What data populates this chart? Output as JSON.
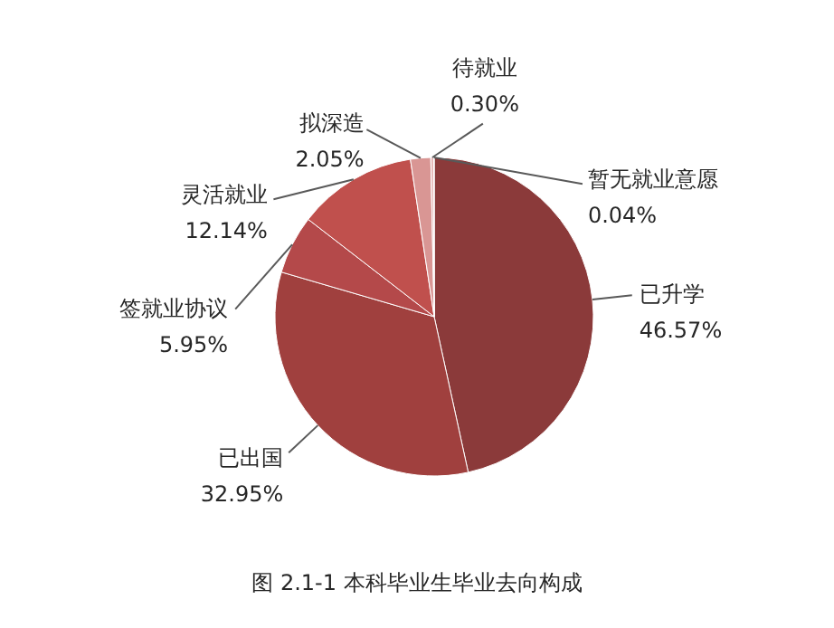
{
  "chart_data": {
    "type": "pie",
    "title": "图 2.1-1  本科毕业生毕业去向构成",
    "categories": [
      "已升学",
      "已出国",
      "签就业协议",
      "灵活就业",
      "拟深造",
      "待就业",
      "暂无就业意愿"
    ],
    "values": [
      46.57,
      32.95,
      5.95,
      12.14,
      2.05,
      0.3,
      0.04
    ],
    "value_labels": [
      "46.57%",
      "32.95%",
      "5.95%",
      "12.14%",
      "2.05%",
      "0.30%",
      "0.04%"
    ],
    "colors": [
      "#8b3a3a",
      "#a0403e",
      "#b4494a",
      "#c0504d",
      "#d99694",
      "#e6b9b8",
      "#f2dcdb"
    ]
  }
}
